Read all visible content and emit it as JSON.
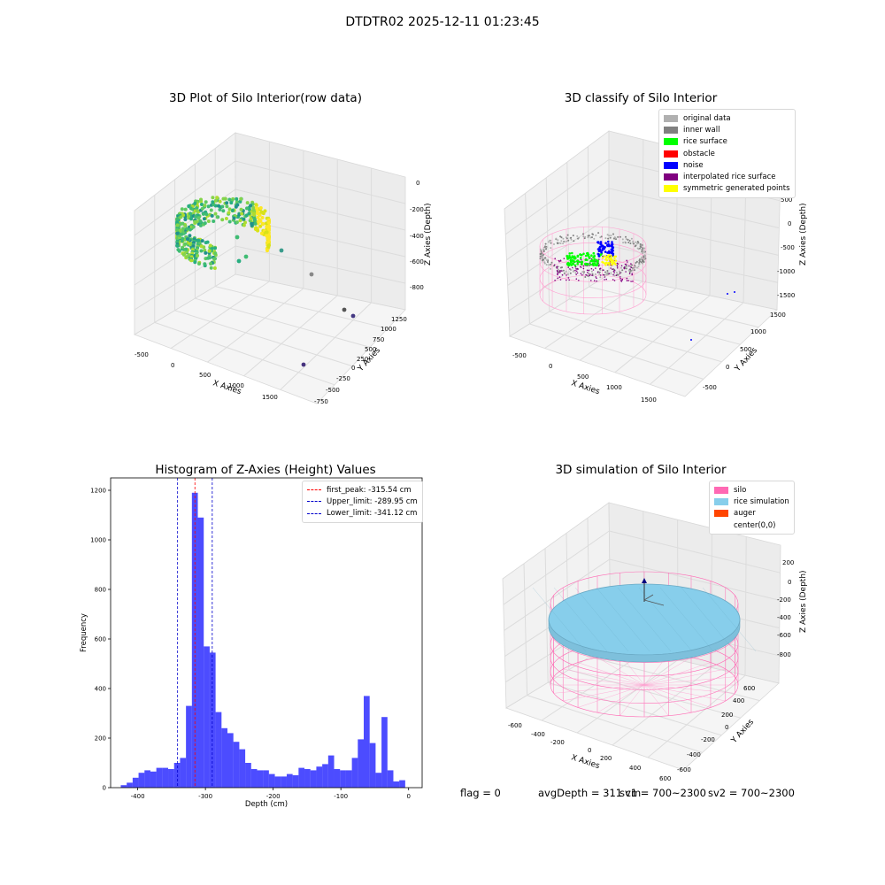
{
  "figure_title": "DTDTR02 2025-12-11 01:23:45",
  "panels": {
    "raw": {
      "title": "3D Plot of Silo Interior(row data)",
      "xlabel": "X Axies",
      "ylabel": "Y Axies",
      "zlabel": "Z Axies (Depth)",
      "xticks": [
        "-500",
        "0",
        "500",
        "1000",
        "1500"
      ],
      "yticks": [
        "-750",
        "-500",
        "-250",
        "0",
        "250",
        "500",
        "750",
        "1000",
        "1250"
      ],
      "zticks": [
        "0",
        "-200",
        "-400",
        "-600",
        "-800"
      ]
    },
    "classify": {
      "title": "3D classify of Silo Interior",
      "xlabel": "X Axies",
      "ylabel": "Y Axies",
      "zlabel": "Z Axies (Depth)",
      "xticks": [
        "-500",
        "0",
        "500",
        "1000",
        "1500"
      ],
      "yticks": [
        "-500",
        "0",
        "500",
        "1000",
        "1500"
      ],
      "zticks": [
        "500",
        "0",
        "-500",
        "-1000",
        "-1500"
      ],
      "legend": [
        {
          "label": "original data",
          "color": "#b0b0b0"
        },
        {
          "label": "inner wall",
          "color": "#808080"
        },
        {
          "label": "rice surface",
          "color": "#00ff00"
        },
        {
          "label": "obstacle",
          "color": "#ff0000"
        },
        {
          "label": "noise",
          "color": "#0000ff"
        },
        {
          "label": "interpolated rice surface",
          "color": "#800080"
        },
        {
          "label": "symmetric generated points",
          "color": "#ffff00"
        }
      ]
    },
    "simulation": {
      "title": "3D simulation of Silo Interior",
      "xlabel": "X Axies",
      "ylabel": "Y Axies",
      "zlabel": "Z Axies (Depth)",
      "xticks": [
        "-600",
        "-400",
        "-200",
        "0",
        "200",
        "400",
        "600"
      ],
      "yticks": [
        "-600",
        "-400",
        "-200",
        "0",
        "200",
        "400",
        "600"
      ],
      "zticks": [
        "200",
        "0",
        "-200",
        "-400",
        "-600",
        "-800"
      ],
      "legend": [
        {
          "label": "silo",
          "color": "#ff69b4"
        },
        {
          "label": "rice simulation",
          "color": "#87ceeb"
        },
        {
          "label": "auger",
          "color": "#ff4500"
        },
        {
          "label": "center(0,0)",
          "color": ""
        }
      ]
    }
  },
  "footer": {
    "flag": "flag = 0",
    "avg": "avgDepth = 311 cm",
    "sv1": "sv1 = 700~2300",
    "sv2": "sv2 = 700~2300"
  },
  "chart_data": [
    {
      "type": "bar",
      "title": "Histogram of Z-Axies (Height) Values",
      "xlabel": "Depth (cm)",
      "ylabel": "Frequency",
      "xlim": [
        -440,
        20
      ],
      "ylim": [
        0,
        1250
      ],
      "xticks": [
        -400,
        -300,
        -200,
        -100,
        0
      ],
      "yticks": [
        0,
        200,
        400,
        600,
        800,
        1000,
        1200
      ],
      "bar_color": "#0000ff",
      "bin_start": -425,
      "bin_width": 8.75,
      "values": [
        10,
        20,
        40,
        60,
        70,
        65,
        80,
        80,
        75,
        100,
        120,
        330,
        1190,
        1090,
        570,
        545,
        305,
        240,
        220,
        185,
        155,
        100,
        75,
        70,
        70,
        55,
        45,
        45,
        55,
        50,
        80,
        75,
        70,
        85,
        95,
        130,
        75,
        70,
        70,
        120,
        195,
        370,
        180,
        60,
        285,
        70,
        25,
        30
      ],
      "reference_lines": [
        {
          "label": "first_peak: -315.54 cm",
          "x": -315.54,
          "color": "#ff0000"
        },
        {
          "label": "Upper_limit: -289.95 cm",
          "x": -289.95,
          "color": "#0000cc"
        },
        {
          "label": "Lower_limit: -341.12 cm",
          "x": -341.12,
          "color": "#0000cc"
        }
      ],
      "legend_position": "top-right",
      "grid": false
    }
  ]
}
